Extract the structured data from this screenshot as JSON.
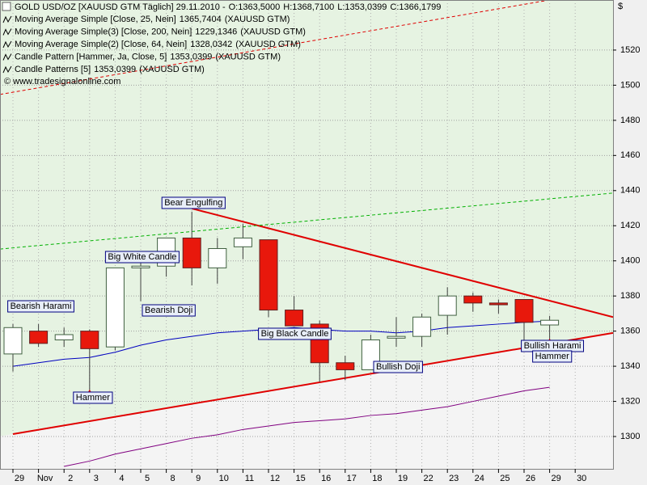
{
  "chart_data": {
    "type": "candlestick",
    "header": {
      "title": "GOLD USD/OZ [XAUUSD GTM  Täglich] 29.11.2010 -",
      "open": "O:1363,5000",
      "high": "H:1368,7100",
      "low": "L:1353,0399",
      "close": "C:1366,1799"
    },
    "legend": [
      {
        "label": "Moving Average Simple [Close, 25, Nein]",
        "value": "1365,7404",
        "color": "#0000c0",
        "suffix": "(XAUUSD GTM)"
      },
      {
        "label": "Moving Average Simple(3) [Close, 200, Nein]",
        "value": "1229,1346",
        "color": "#0000c0",
        "suffix": "(XAUUSD GTM)"
      },
      {
        "label": "Moving Average Simple(2) [Close, 64, Nein]",
        "value": "1328,0342",
        "color": "#800080",
        "suffix": "(XAUUSD GTM)"
      },
      {
        "label": "Candle Pattern [Hammer, Ja, Close, 5]",
        "value": "1353,0399",
        "color": "#800080",
        "suffix": "(XAUUSD GTM)"
      },
      {
        "label": "Candle Patterns [5]",
        "value": "1353,0399",
        "color": "#0000c0",
        "suffix": "(XAUUSD GTM)"
      }
    ],
    "copyright": "© www.tradesignalonline.com",
    "y_axis_label": "$",
    "categories": [
      "29",
      "Nov",
      "2",
      "3",
      "4",
      "5",
      "8",
      "9",
      "10",
      "11",
      "12",
      "15",
      "16",
      "17",
      "18",
      "19",
      "22",
      "23",
      "24",
      "25",
      "26",
      "29",
      "30"
    ],
    "ohlc": {
      "open": [
        1347,
        1360,
        1355,
        1360,
        1351,
        1396,
        1397,
        1413,
        1396,
        1408,
        1412,
        1372,
        1364,
        1342,
        1338,
        1356,
        1357,
        1369,
        1380,
        1376,
        1378,
        1363.5,
        null
      ],
      "high": [
        1364,
        1364,
        1362,
        1361,
        1396,
        1400,
        1413,
        1428,
        1413,
        1421,
        1412,
        1380,
        1366,
        1346,
        1358,
        1368,
        1370,
        1385,
        1382,
        1378,
        1378,
        1368.71,
        null
      ],
      "low": [
        1337,
        1351,
        1351,
        1324,
        1349,
        1377,
        1391,
        1386,
        1387,
        1401,
        1368,
        1363,
        1331,
        1332,
        1338,
        1351,
        1351,
        1358,
        1371,
        1370,
        1353,
        1353.04,
        null
      ],
      "close": [
        1362,
        1353,
        1358,
        1350,
        1396,
        1397,
        1413,
        1396,
        1407,
        1413,
        1372,
        1363,
        1342,
        1338,
        1355,
        1357,
        1368,
        1380,
        1376,
        1375,
        1365,
        1366.18,
        null
      ],
      "up_color": "#ffffff",
      "down_color": "#e8180c"
    },
    "series": [
      {
        "color": "#0000c0",
        "values": [
          1340,
          1342,
          1344,
          1345,
          1348,
          1352,
          1355,
          1357,
          1359,
          1360,
          1361,
          1362,
          1361,
          1360,
          1360,
          1359,
          1360,
          1362,
          1363,
          1364,
          1365,
          1365.74,
          null
        ]
      },
      {
        "color": "#800080",
        "values": [
          null,
          null,
          1283,
          1286,
          1290,
          1293,
          1296,
          1299,
          1301,
          1304,
          1306,
          1308,
          1309,
          1310,
          1312,
          1313,
          1315,
          1317,
          1320,
          1323,
          1326,
          1328.03,
          null
        ]
      }
    ],
    "trendlines": [
      {
        "color": "#e00000",
        "dashed": false,
        "start": {
          "index": 0,
          "value": 1301.4
        },
        "end": {
          "index": 21,
          "value": 1352.9
        }
      },
      {
        "color": "#e00000",
        "dashed": false,
        "start": {
          "index": 7,
          "value": 1429.8
        },
        "end": {
          "index": 21,
          "value": 1377.3
        }
      },
      {
        "color": "#00b000",
        "dashed": true,
        "start": {
          "index": 0,
          "value": 1407.4
        },
        "end": {
          "index": 21,
          "value": 1435.3
        }
      },
      {
        "color": "#e00000",
        "dashed": true,
        "start": {
          "index": 0,
          "value": 1496
        },
        "end": {
          "index": 21,
          "value": 1548.5
        }
      }
    ],
    "annotations": [
      {
        "text": "Bearish Harami",
        "index": 1
      },
      {
        "text": "Hammer",
        "index": 3
      },
      {
        "text": "Big White Candle",
        "index": 4
      },
      {
        "text": "Bearish Doji",
        "index": 5
      },
      {
        "text": "Bear Engulfing",
        "index": 7
      },
      {
        "text": "Big Black Candle",
        "index": 11
      },
      {
        "text": "Bullish Doji",
        "index": 15
      },
      {
        "text": "Bullish Harami",
        "index": 21
      },
      {
        "text": "Hammer",
        "index": 21
      }
    ],
    "markers": [
      {
        "index": 3,
        "value": 1324
      },
      {
        "index": 21,
        "value": 1353.04
      }
    ],
    "ylim": [
      1281.6,
      1548.5
    ],
    "yticks": [
      1300,
      1320,
      1340,
      1360,
      1380,
      1400,
      1420,
      1440,
      1460,
      1480,
      1500,
      1520
    ],
    "grid": true
  }
}
